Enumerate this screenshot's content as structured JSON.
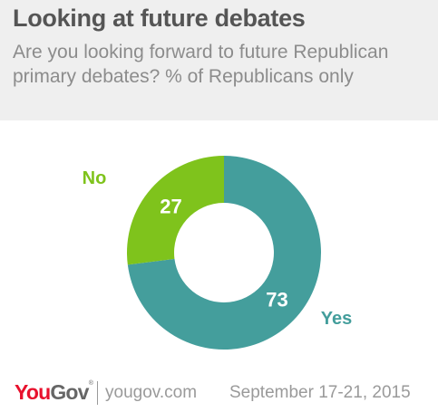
{
  "header": {
    "title": "Looking at future debates",
    "subtitle": "Are you looking forward to future Republican primary debates? % of Republicans only"
  },
  "chart_data": {
    "type": "pie",
    "donut": true,
    "title": "Looking at future debates",
    "subtitle": "Are you looking forward to future Republican primary debates? % of Republicans only",
    "slices": [
      {
        "label": "Yes",
        "value": 73,
        "color": "#449e9c"
      },
      {
        "label": "No",
        "value": 27,
        "color": "#7fc31c"
      }
    ],
    "start_angle_deg": 0,
    "direction": "clockwise"
  },
  "footer": {
    "logo_you": "You",
    "logo_gov": "Gov",
    "logo_tm": "®",
    "website": "yougov.com",
    "date": "September 17-21, 2015"
  }
}
